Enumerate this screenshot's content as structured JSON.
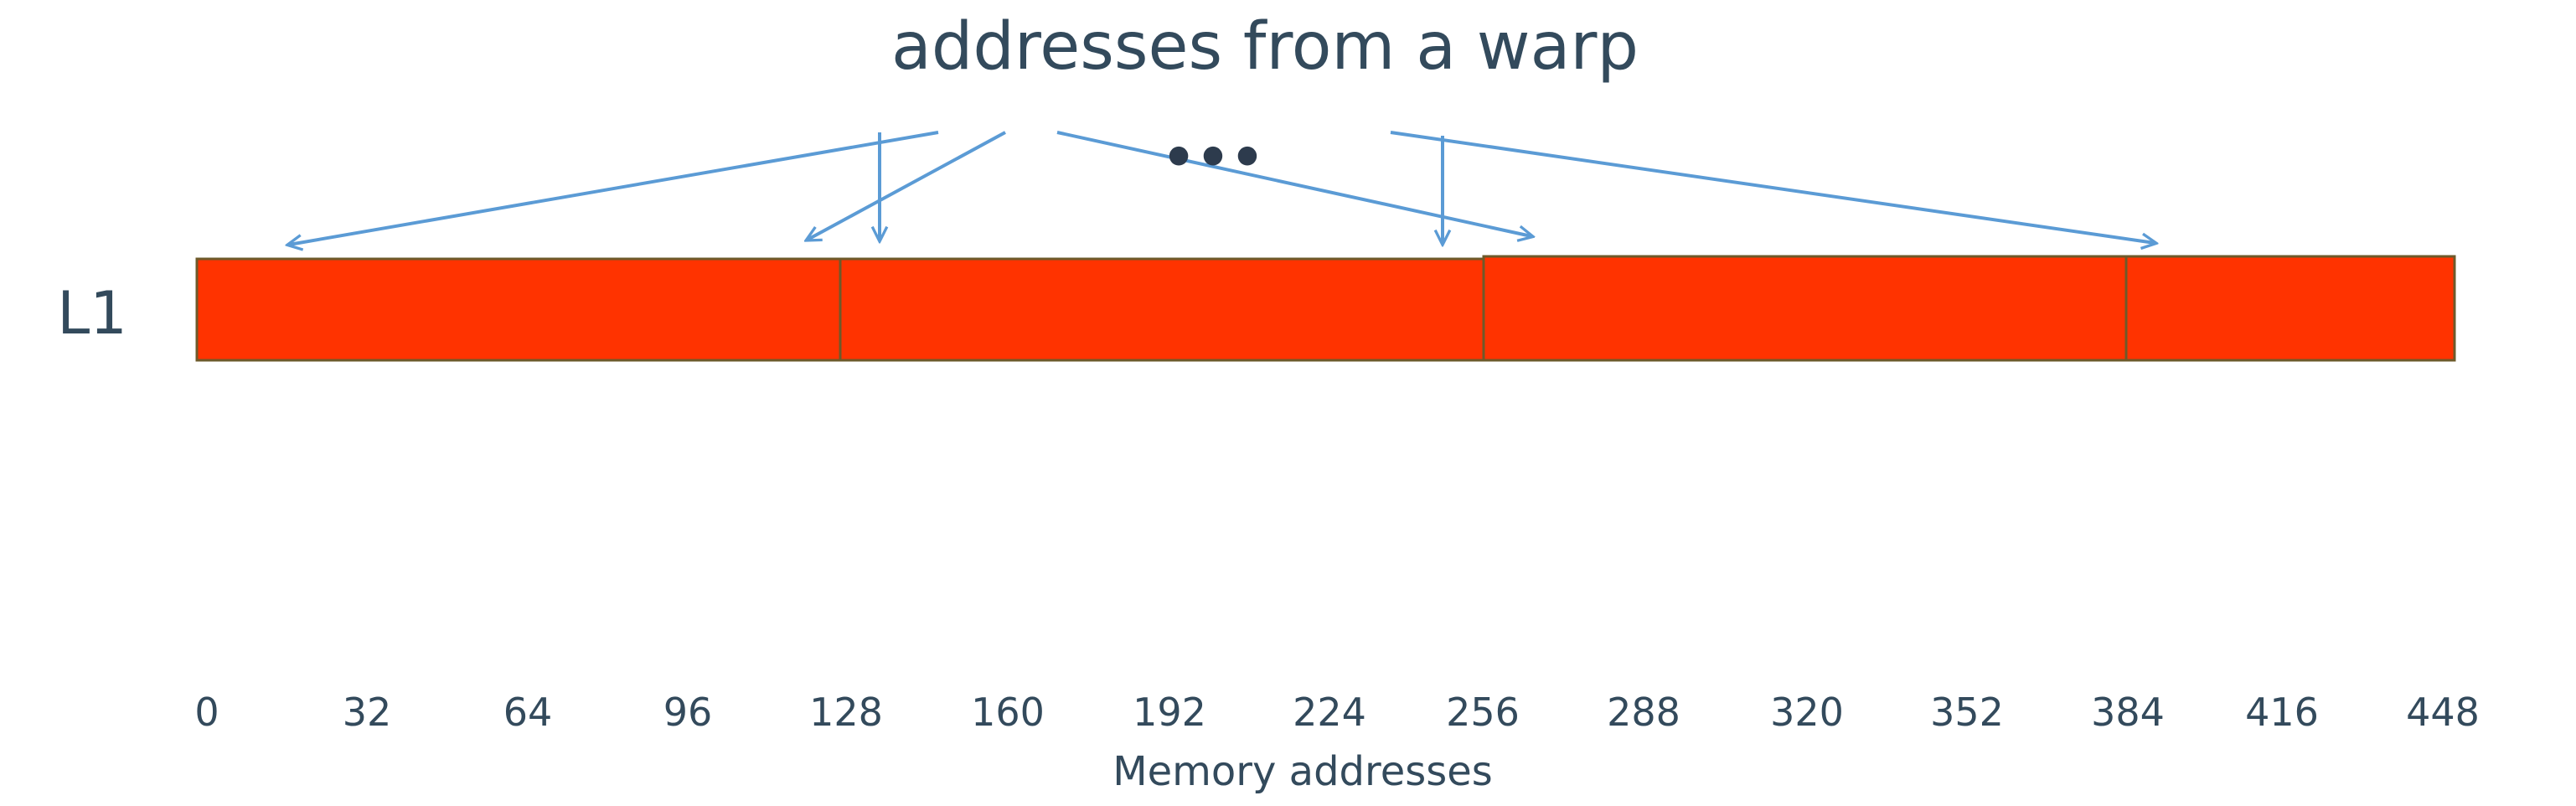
{
  "diagram": {
    "title": "addresses from a warp",
    "cache_level_label": "L1",
    "ellipsis": "•••",
    "x_axis_label": "Memory addresses",
    "x_ticks": [
      "0",
      "32",
      "64",
      "96",
      "128",
      "160",
      "192",
      "224",
      "256",
      "288",
      "320",
      "352",
      "384",
      "416",
      "448"
    ],
    "cache_lines": [
      {
        "name": "cache-line-0"
      },
      {
        "name": "cache-line-1"
      },
      {
        "name": "cache-line-2"
      },
      {
        "name": "cache-line-3"
      }
    ],
    "colors": {
      "cache_line_fill": "#ff3300",
      "cache_line_border": "#6e5a2a",
      "arrow": "#5b9bd5",
      "text": "#334a5c"
    }
  }
}
